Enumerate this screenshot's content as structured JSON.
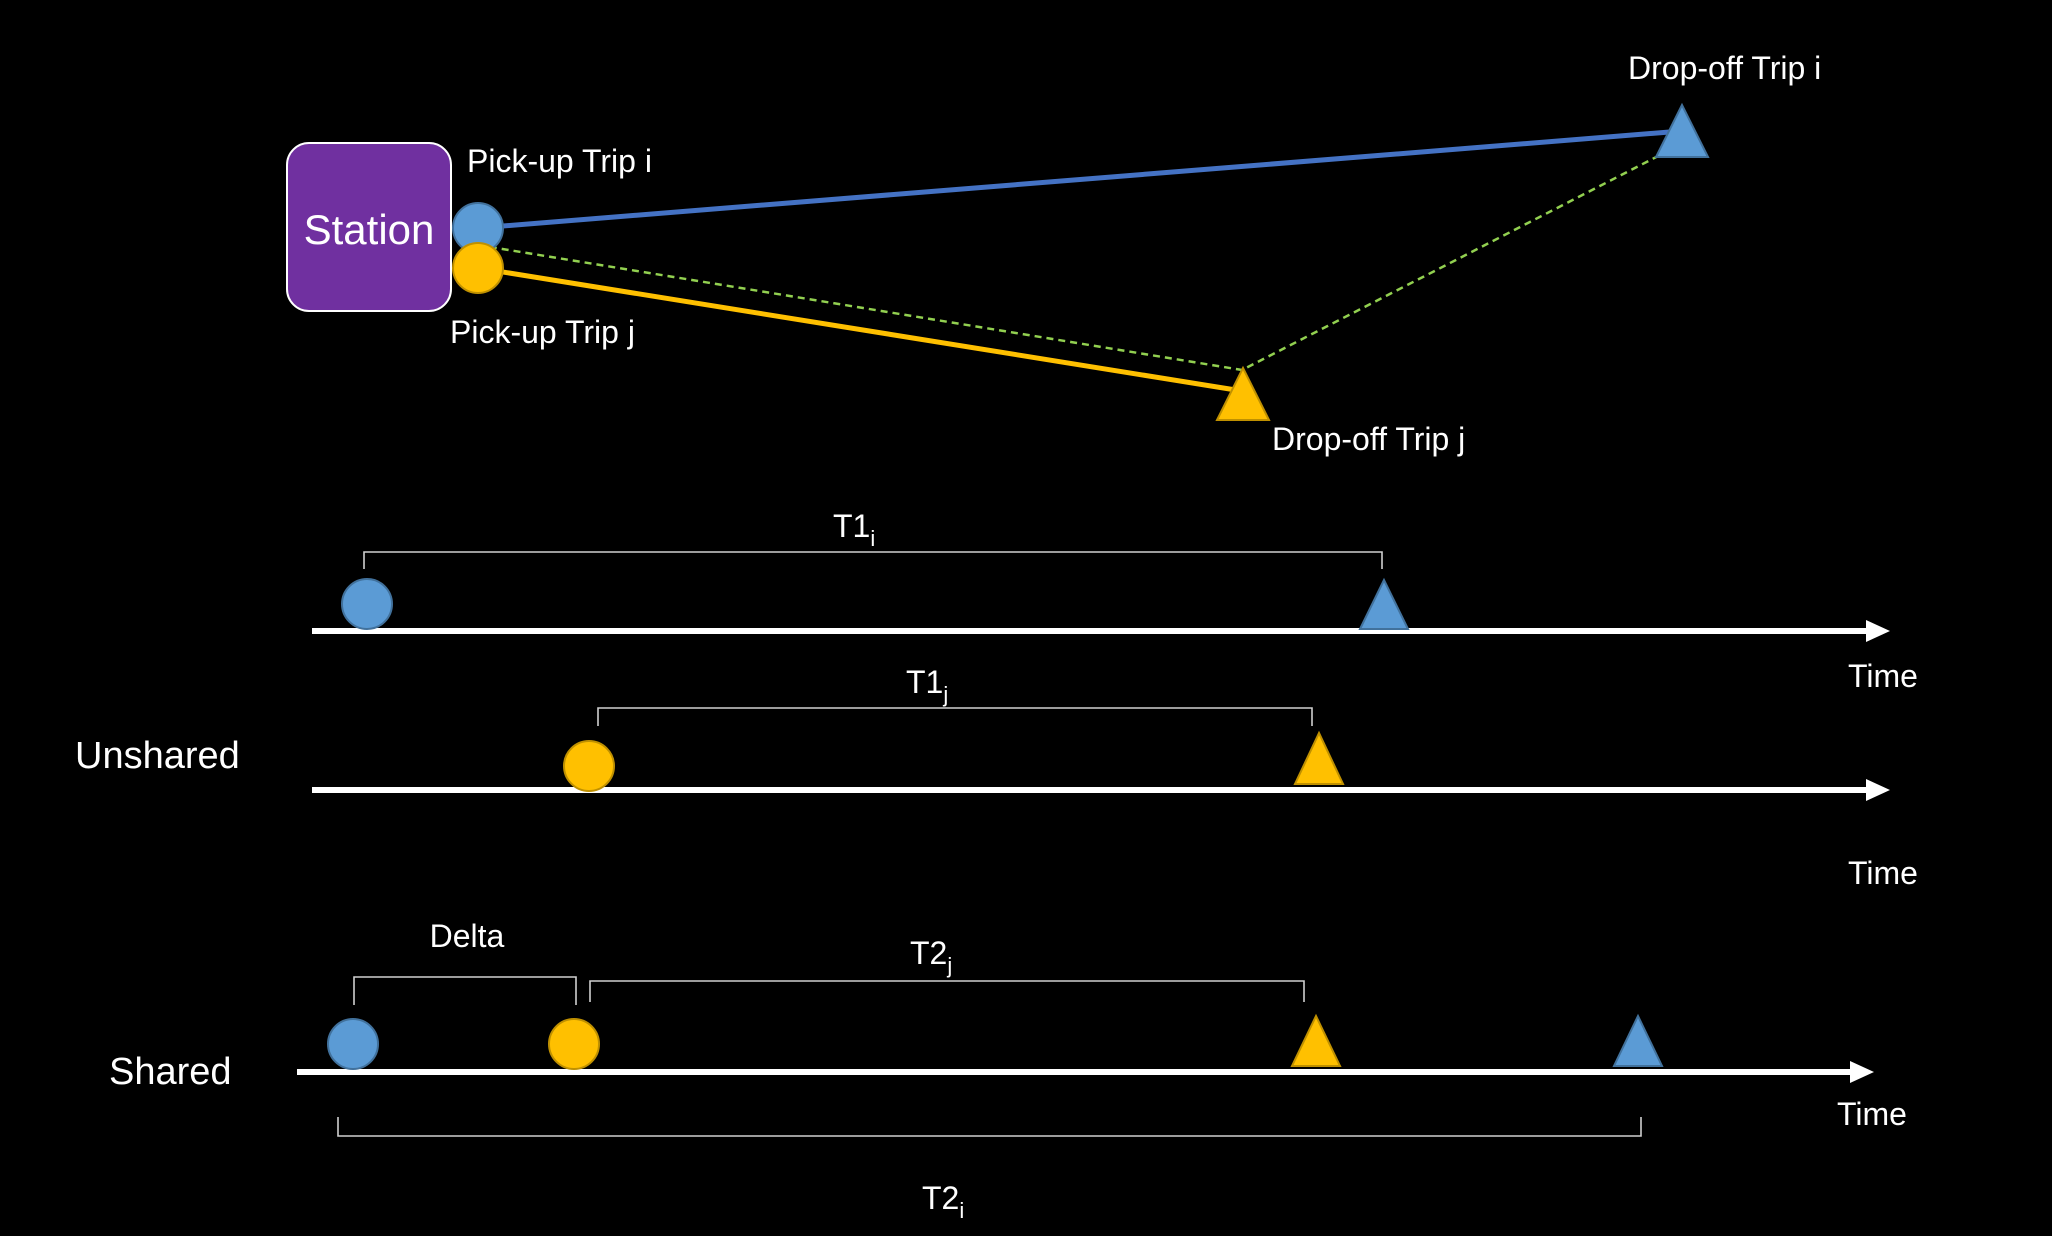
{
  "colors": {
    "background": "#000000",
    "station": "#7030a0",
    "trip_i": "#5b9bd5",
    "trip_i_line": "#4472c4",
    "trip_j": "#ffc000",
    "shared_route": "#92d050",
    "text": "#ffffff"
  },
  "map": {
    "station_label": "Station",
    "pickup_i": "Pick-up Trip i",
    "pickup_j": "Pick-up Trip j",
    "dropoff_i": "Drop-off Trip i",
    "dropoff_j": "Drop-off Trip j"
  },
  "timelines": {
    "unshared_label": "Unshared",
    "shared_label": "Shared",
    "axis_label": "Time",
    "t1i": {
      "main": "T1",
      "sub": "i"
    },
    "t1j": {
      "main": "T1",
      "sub": "j"
    },
    "t2j": {
      "main": "T2",
      "sub": "j"
    },
    "t2i": {
      "main": "T2",
      "sub": "i"
    },
    "delta": "Delta"
  },
  "icons": {
    "pickup": "circle-icon",
    "dropoff": "triangle-icon",
    "axis_head": "arrow-right-icon"
  }
}
